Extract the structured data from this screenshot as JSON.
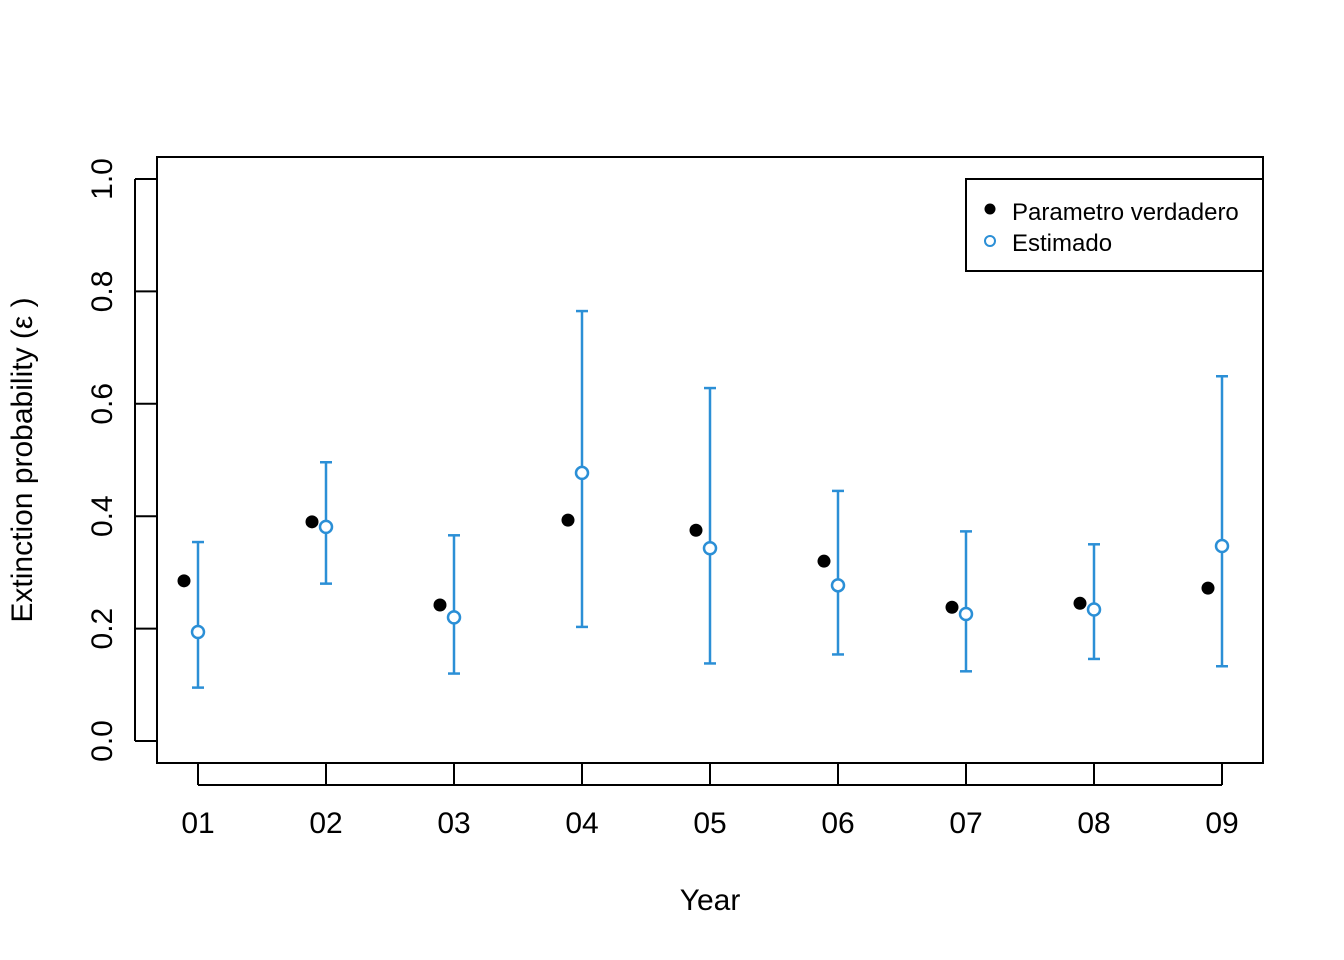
{
  "chart_data": {
    "type": "scatter",
    "title": "",
    "xlabel": "Year",
    "ylabel": "Extinction probability (ε )",
    "categories": [
      "01",
      "02",
      "03",
      "04",
      "05",
      "06",
      "07",
      "08",
      "09"
    ],
    "ylim": [
      0.0,
      1.0
    ],
    "yticks": [
      "0.0",
      "0.2",
      "0.4",
      "0.6",
      "0.8",
      "1.0"
    ],
    "grid": false,
    "legend": {
      "placement": "top-right"
    },
    "colors": {
      "true": "#000000",
      "estimated": "#2b8fd6"
    },
    "series": [
      {
        "name": "Parametro verdadero",
        "marker": "filled-circle",
        "values": [
          0.285,
          0.39,
          0.242,
          0.393,
          0.375,
          0.32,
          0.238,
          0.245,
          0.272
        ]
      },
      {
        "name": "Estimado",
        "marker": "open-circle",
        "values": [
          0.194,
          0.381,
          0.22,
          0.477,
          0.343,
          0.277,
          0.226,
          0.234,
          0.347
        ],
        "lower": [
          0.095,
          0.28,
          0.12,
          0.203,
          0.138,
          0.154,
          0.124,
          0.146,
          0.133
        ],
        "upper": [
          0.354,
          0.496,
          0.366,
          0.765,
          0.628,
          0.445,
          0.373,
          0.35,
          0.649
        ]
      }
    ]
  }
}
